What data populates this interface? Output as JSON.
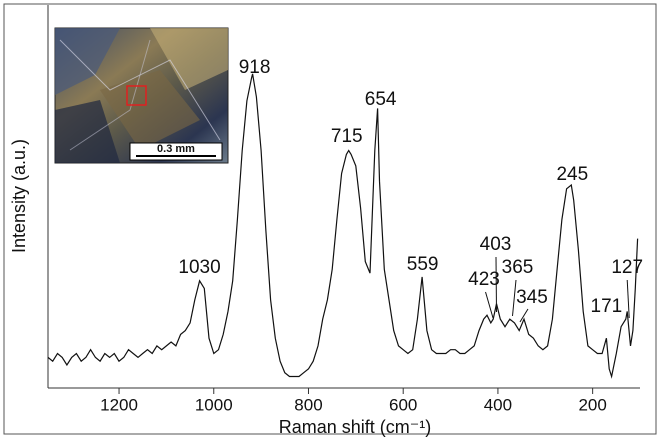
{
  "chart_data": {
    "type": "line",
    "ylabel": "Intensity (a.u.)",
    "xlabel": "Raman shift (cm⁻¹)",
    "inset_scale": "0.3 mm",
    "xlim": [
      1350,
      100
    ],
    "ylim": [
      0,
      100
    ],
    "xticks": [
      1200,
      1000,
      800,
      600,
      400,
      200
    ],
    "color": "#111111",
    "peak_labels": [
      1030,
      918,
      715,
      654,
      559,
      423,
      403,
      365,
      345,
      245,
      171,
      127
    ],
    "x": [
      1350,
      1340,
      1330,
      1320,
      1310,
      1300,
      1290,
      1280,
      1270,
      1260,
      1250,
      1240,
      1230,
      1220,
      1210,
      1200,
      1190,
      1180,
      1170,
      1160,
      1150,
      1140,
      1130,
      1120,
      1110,
      1100,
      1090,
      1080,
      1070,
      1060,
      1050,
      1040,
      1030,
      1020,
      1010,
      1000,
      990,
      980,
      970,
      960,
      950,
      940,
      930,
      920,
      918,
      910,
      900,
      890,
      880,
      870,
      860,
      850,
      840,
      830,
      820,
      810,
      800,
      790,
      780,
      770,
      760,
      750,
      740,
      730,
      720,
      715,
      710,
      700,
      690,
      680,
      670,
      660,
      654,
      650,
      640,
      630,
      620,
      610,
      600,
      590,
      580,
      570,
      560,
      550,
      540,
      530,
      520,
      510,
      500,
      490,
      480,
      470,
      460,
      450,
      440,
      430,
      423,
      415,
      410,
      403,
      395,
      385,
      375,
      365,
      355,
      345,
      335,
      325,
      315,
      305,
      295,
      285,
      275,
      265,
      255,
      245,
      240,
      230,
      220,
      210,
      200,
      190,
      180,
      171,
      165,
      160,
      150,
      140,
      130,
      127,
      120,
      115,
      110,
      105
    ],
    "values": [
      8,
      7,
      9,
      8,
      6,
      8,
      9,
      7,
      8,
      10,
      8,
      7,
      9,
      8,
      9,
      7,
      8,
      10,
      9,
      8,
      9,
      10,
      9,
      11,
      10,
      11,
      12,
      11,
      14,
      15,
      17,
      23,
      28,
      26,
      13,
      9,
      10,
      14,
      20,
      28,
      44,
      62,
      75,
      81,
      82,
      76,
      62,
      41,
      23,
      13,
      7,
      4,
      3,
      3,
      3,
      4,
      5,
      7,
      11,
      18,
      23,
      31,
      44,
      56,
      61,
      62,
      61,
      58,
      47,
      33,
      30,
      62,
      73,
      54,
      31,
      23,
      15,
      11,
      10,
      9,
      10,
      18,
      29,
      15,
      10,
      9,
      9,
      9,
      10,
      10,
      9,
      9,
      10,
      11,
      15,
      18,
      19,
      17,
      18,
      22,
      18,
      16,
      18,
      17,
      15,
      18,
      14,
      13,
      11,
      10,
      11,
      18,
      31,
      44,
      52,
      53,
      49,
      36,
      20,
      11,
      10,
      9,
      9,
      13,
      5,
      3,
      9,
      16,
      18,
      20,
      11,
      15,
      26,
      39
    ]
  }
}
